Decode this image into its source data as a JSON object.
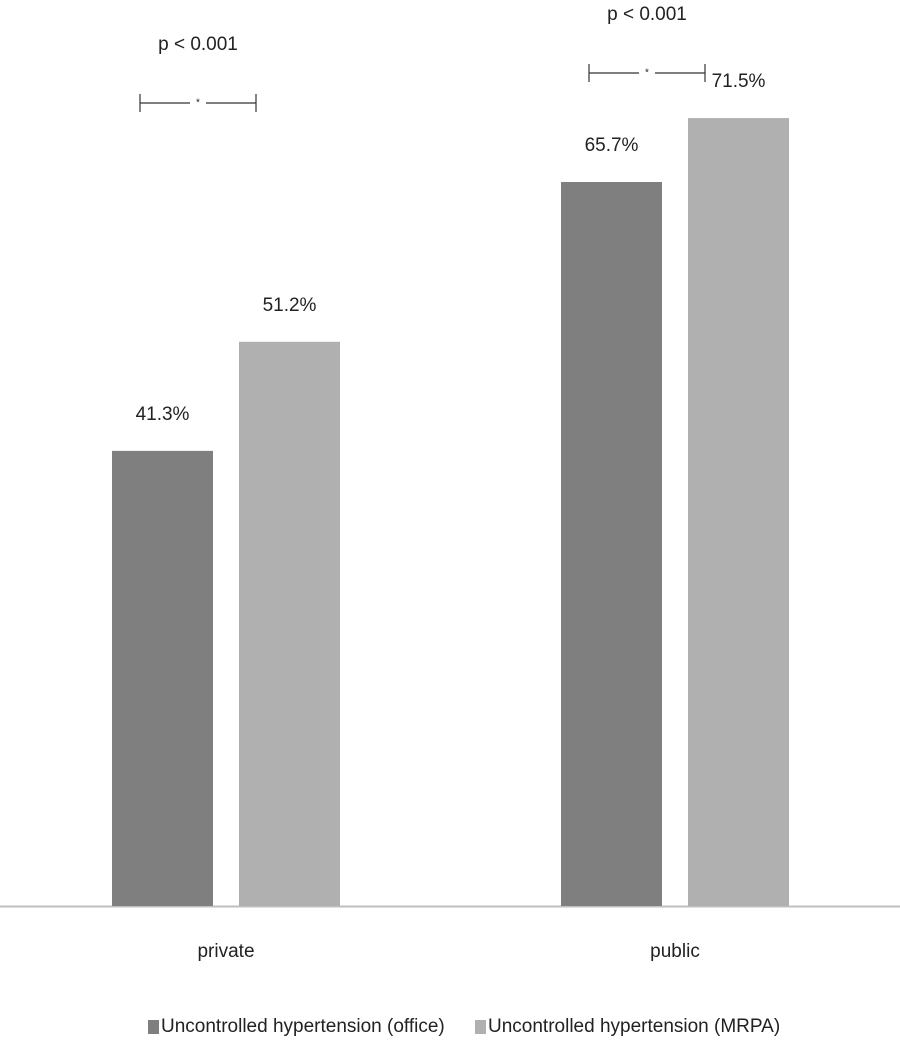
{
  "chart_data": {
    "type": "bar",
    "categories": [
      "private",
      "public"
    ],
    "series": [
      {
        "name": "Uncontrolled hypertension (office)",
        "color": "#7f7f7f",
        "values": [
          41.3,
          65.7
        ],
        "value_labels": [
          "41.3%",
          "65.7%"
        ]
      },
      {
        "name": "Uncontrolled hypertension (MRPA)",
        "color": "#b0b0b0",
        "values": [
          51.2,
          71.5
        ],
        "value_labels": [
          "51.2%",
          "71.5%"
        ]
      }
    ],
    "annotations": [
      {
        "text": "p < 0.001",
        "marker": "*"
      },
      {
        "text": "p < 0.001",
        "marker": "*"
      }
    ]
  }
}
